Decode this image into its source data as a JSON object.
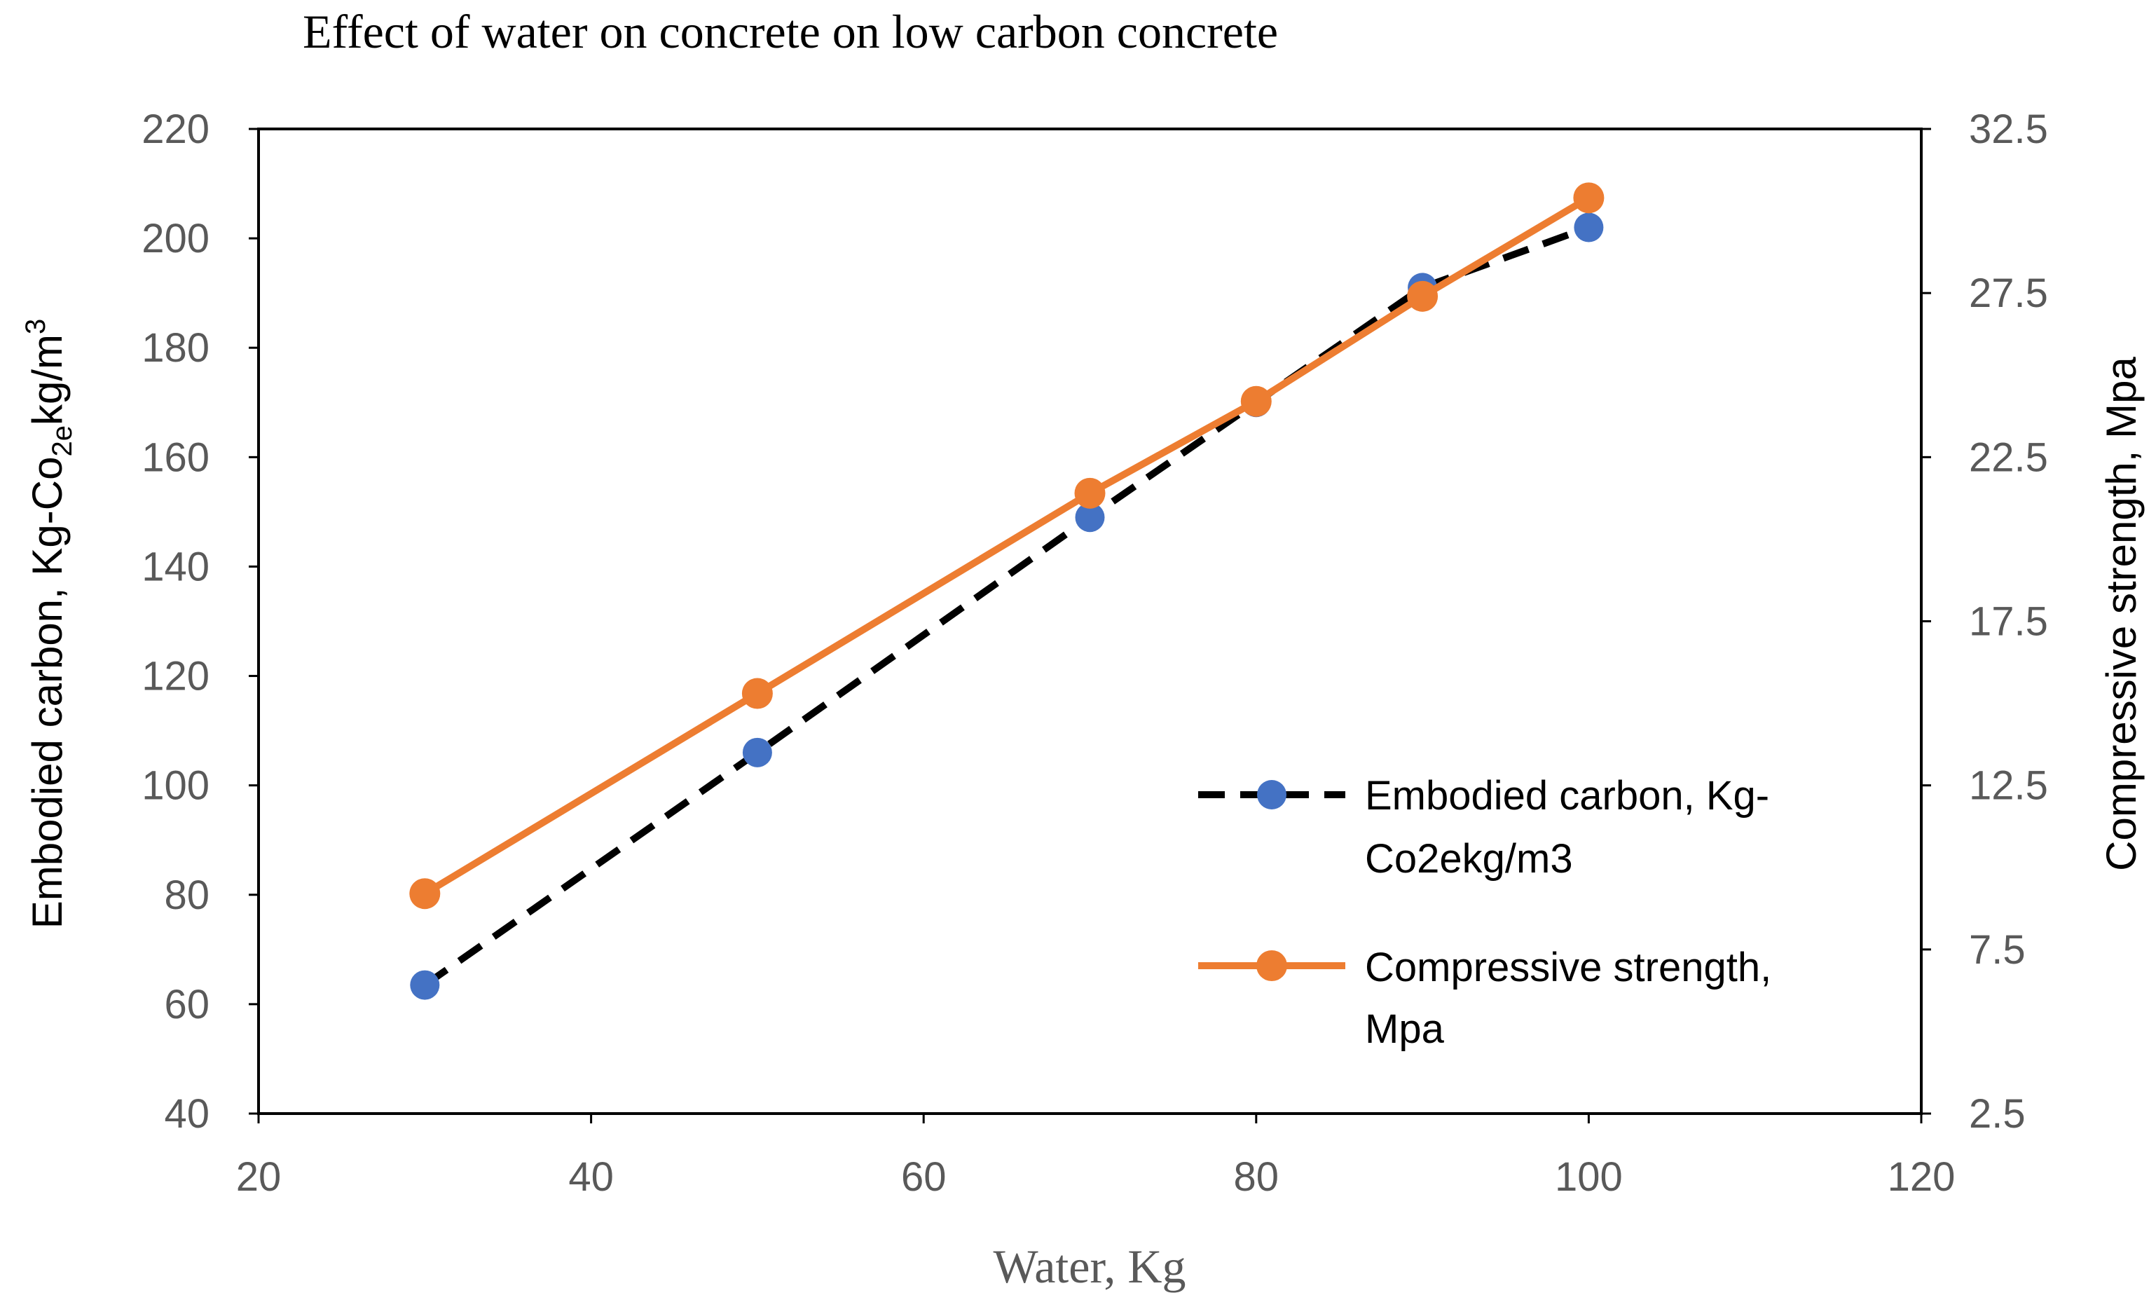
{
  "chart_data": {
    "type": "line",
    "title": "Effect of water on concrete on low carbon concrete",
    "xlabel": "Water, Kg",
    "ylabel_left": {
      "base": "Embodied carbon, Kg-Co",
      "sub": "2e",
      "mid": "kg/m",
      "sup": "3"
    },
    "ylabel_right": "Compressive strength, Mpa",
    "xlim": [
      20,
      120
    ],
    "ylim_left": [
      40,
      220
    ],
    "ylim_right": [
      2.5,
      32.5
    ],
    "x_ticks": [
      20,
      40,
      60,
      80,
      100,
      120
    ],
    "y_left_ticks": [
      40,
      60,
      80,
      100,
      120,
      140,
      160,
      180,
      200,
      220
    ],
    "y_right_ticks": [
      "2.5",
      "7.5",
      "12.5",
      "17.5",
      "22.5",
      "27.5",
      "32.5"
    ],
    "series": [
      {
        "name": "Embodied carbon, Kg-Co2ekg/m3",
        "legend_lines": [
          "Embodied carbon, Kg-",
          "Co2ekg/m3"
        ],
        "axis": "left",
        "x": [
          30,
          50,
          70,
          80,
          90,
          100
        ],
        "values": [
          63.5,
          106,
          149,
          170,
          191,
          202
        ],
        "line_color": "#000000",
        "marker_color": "#4472c4",
        "line_style": "dashed"
      },
      {
        "name": "Compressive strength, Mpa",
        "legend_lines": [
          "Compressive strength,",
          "Mpa"
        ],
        "axis": "right",
        "x": [
          30,
          50,
          70,
          80,
          90,
          100
        ],
        "values": [
          9.2,
          15.3,
          21.4,
          24.2,
          27.4,
          30.4
        ],
        "line_color": "#ed7d31",
        "marker_color": "#ed7d31",
        "line_style": "solid"
      }
    ],
    "legend_position": "center-right"
  }
}
